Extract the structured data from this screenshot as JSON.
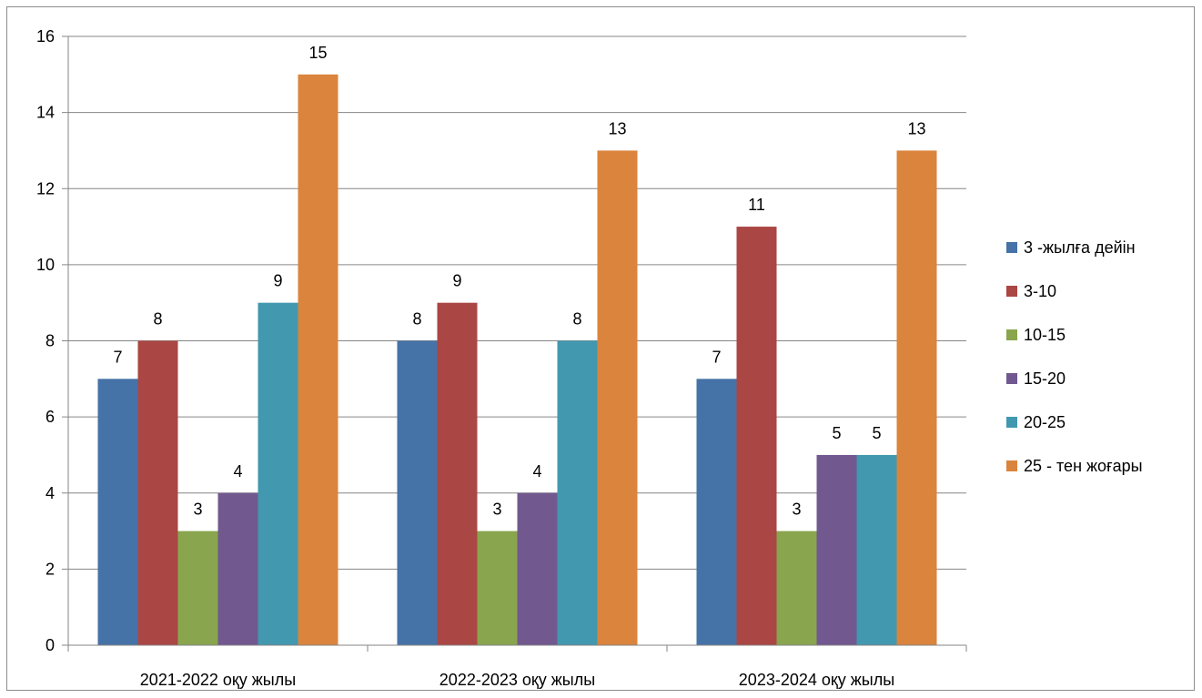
{
  "chart_data": {
    "type": "bar",
    "title": "",
    "xlabel": "",
    "ylabel": "",
    "categories": [
      "2021-2022 оқу жылы",
      "2022-2023 оқу жылы",
      "2023-2024 оқу жылы"
    ],
    "series": [
      {
        "name": "3 -жылға дейін",
        "color": "#4572A7",
        "values": [
          7,
          8,
          7
        ]
      },
      {
        "name": "3-10",
        "color": "#AA4643",
        "values": [
          8,
          9,
          11
        ]
      },
      {
        "name": "10-15",
        "color": "#89A54E",
        "values": [
          3,
          3,
          3
        ]
      },
      {
        "name": "15-20",
        "color": "#71588F",
        "values": [
          4,
          4,
          5
        ]
      },
      {
        "name": "20-25",
        "color": "#4198AF",
        "values": [
          9,
          8,
          5
        ]
      },
      {
        "name": "25 - тен жоғары",
        "color": "#DB843D",
        "values": [
          15,
          13,
          13
        ]
      }
    ],
    "ylim": [
      0,
      16
    ],
    "yticks": [
      0,
      2,
      4,
      6,
      8,
      10,
      12,
      14,
      16
    ],
    "grid": true,
    "legend_position": "right",
    "data_labels": true
  }
}
